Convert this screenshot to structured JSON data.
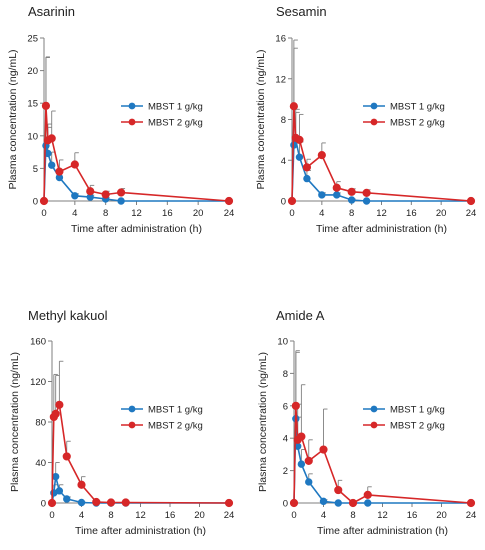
{
  "colors": {
    "s1": "#1f78c1",
    "s2": "#d62728",
    "axis": "#7f7f7f",
    "err": "#7f7f7f"
  },
  "chart_data": [
    {
      "type": "line",
      "title": "Asarinin",
      "xlabel": "Time after administration (h)",
      "ylabel": "Plasma concentration (ng/mL)",
      "xlim": [
        0,
        24
      ],
      "ylim": [
        0,
        25
      ],
      "x_ticks": [
        0,
        4,
        8,
        12,
        16,
        20,
        24
      ],
      "y_ticks": [
        0,
        5,
        10,
        15,
        20,
        25
      ],
      "legend": "right",
      "series": [
        {
          "name": "MBST 1 g/kg",
          "x": [
            0,
            0.25,
            0.5,
            1,
            2,
            4,
            6,
            8,
            10,
            24
          ],
          "y": [
            0,
            8.5,
            7.3,
            5.5,
            3.6,
            0.8,
            0.6,
            0.3,
            0,
            0
          ],
          "err": [
            0,
            13.5,
            4,
            2,
            1.2,
            0.3,
            0.3,
            0.2,
            0,
            0
          ]
        },
        {
          "name": "MBST 2 g/kg",
          "x": [
            0,
            0.25,
            0.5,
            1,
            2,
            4,
            6,
            8,
            10,
            24
          ],
          "y": [
            0,
            14.6,
            9.3,
            9.6,
            4.5,
            5.6,
            1.5,
            1.0,
            1.3,
            0
          ],
          "err": [
            0,
            7.5,
            2.5,
            4.2,
            1.8,
            1.8,
            0.9,
            0.5,
            0.6,
            0
          ]
        }
      ]
    },
    {
      "type": "line",
      "title": "Sesamin",
      "xlabel": "Time after administration (h)",
      "ylabel": "Plasma concentration (ng/mL)",
      "xlim": [
        0,
        24
      ],
      "ylim": [
        0,
        16
      ],
      "x_ticks": [
        0,
        4,
        8,
        12,
        16,
        20,
        24
      ],
      "y_ticks": [
        0,
        4,
        8,
        12,
        16
      ],
      "legend": "right",
      "series": [
        {
          "name": "MBST 1 g/kg",
          "x": [
            0,
            0.25,
            0.5,
            1,
            2,
            4,
            6,
            8,
            10,
            24
          ],
          "y": [
            0,
            5.5,
            6.0,
            4.3,
            2.2,
            0.6,
            0.6,
            0.1,
            0,
            0
          ],
          "err": [
            0,
            9.5,
            3,
            1.5,
            0.8,
            0.2,
            0.2,
            0.1,
            0,
            0
          ]
        },
        {
          "name": "MBST 2 g/kg",
          "x": [
            0,
            0.25,
            0.5,
            1,
            2,
            4,
            6,
            8,
            10,
            24
          ],
          "y": [
            0,
            9.3,
            6.2,
            6.0,
            3.3,
            4.5,
            1.3,
            0.9,
            0.8,
            0
          ],
          "err": [
            0,
            6.5,
            2.5,
            2.5,
            0.8,
            1.2,
            0.6,
            0.3,
            0.3,
            0
          ]
        }
      ]
    },
    {
      "type": "line",
      "title": "Methyl kakuol",
      "xlabel": "Time after administration (h)",
      "ylabel": "Plasma concentration (ng/mL)",
      "xlim": [
        0,
        24
      ],
      "ylim": [
        0,
        160
      ],
      "x_ticks": [
        0,
        4,
        8,
        12,
        16,
        20,
        24
      ],
      "y_ticks": [
        0,
        40,
        80,
        120,
        160
      ],
      "legend": "right",
      "series": [
        {
          "name": "MBST 1 g/kg",
          "x": [
            0,
            0.25,
            0.5,
            1,
            2,
            4,
            6,
            8,
            10,
            24
          ],
          "y": [
            0,
            10,
            26,
            12,
            4,
            0.5,
            0,
            0,
            0,
            0
          ],
          "err": [
            0,
            8,
            14,
            6,
            2,
            0.5,
            0,
            0,
            0,
            0
          ]
        },
        {
          "name": "MBST 2 g/kg",
          "x": [
            0,
            0.25,
            0.5,
            1,
            2,
            4,
            6,
            8,
            10,
            24
          ],
          "y": [
            0,
            85,
            88,
            97,
            46,
            18,
            1,
            0.5,
            0.5,
            0
          ],
          "err": [
            0,
            42,
            38,
            43,
            15,
            8,
            1,
            0.5,
            0.5,
            0
          ]
        }
      ]
    },
    {
      "type": "line",
      "title": "Amide A",
      "xlabel": "Time after administration (h)",
      "ylabel": "Plasma concentration (ng/mL)",
      "xlim": [
        0,
        24
      ],
      "ylim": [
        0,
        10
      ],
      "x_ticks": [
        0,
        4,
        8,
        12,
        16,
        20,
        24
      ],
      "y_ticks": [
        0,
        2,
        4,
        6,
        8,
        10
      ],
      "legend": "right",
      "series": [
        {
          "name": "MBST 1 g/kg",
          "x": [
            0,
            0.25,
            0.5,
            1,
            2,
            4,
            6,
            8,
            10,
            24
          ],
          "y": [
            0,
            5.2,
            3.5,
            2.4,
            1.3,
            0.1,
            0,
            0,
            0,
            0
          ],
          "err": [
            0,
            4.2,
            1.8,
            0.9,
            0.5,
            0.1,
            0,
            0,
            0,
            0
          ]
        },
        {
          "name": "MBST 2 g/kg",
          "x": [
            0,
            0.25,
            0.5,
            1,
            2,
            4,
            6,
            8,
            10,
            24
          ],
          "y": [
            0,
            6.0,
            3.9,
            4.1,
            2.6,
            3.3,
            0.8,
            0,
            0.5,
            0
          ],
          "err": [
            0,
            3.3,
            2.2,
            3.2,
            1.3,
            2.5,
            0.6,
            0,
            0.5,
            0
          ]
        }
      ]
    }
  ]
}
